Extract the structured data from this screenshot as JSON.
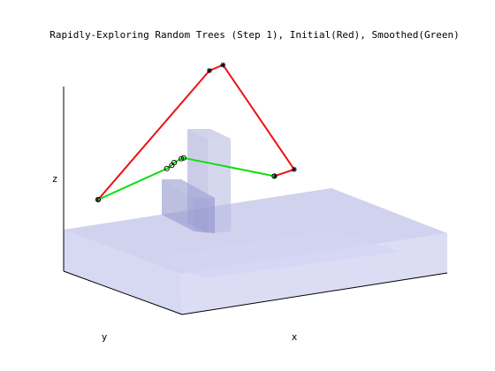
{
  "chart_data": {
    "type": "line3d",
    "title": "Rapidly-Exploring Random Trees (Step 1), Initial(Red), Smoothed(Green)",
    "xlabel": "x",
    "ylabel": "y",
    "zlabel": "z",
    "grid": false,
    "legend": "none",
    "colors": {
      "initial_path": "#ee1111",
      "smoothed_path": "#11dd11",
      "ground": "#bcbfe6",
      "obstacle": "#a9acd8",
      "axes": "#000000"
    },
    "series": [
      {
        "name": "Initial",
        "color": "#ee1111",
        "points": [
          {
            "x": 0.0,
            "y": 0.0,
            "z": 0.5
          },
          {
            "x": 0.46,
            "y": 0.31,
            "z": 1.0
          },
          {
            "x": 0.51,
            "y": 0.3,
            "z": 1.02
          },
          {
            "x": 0.82,
            "y": 0.62,
            "z": 0.37
          },
          {
            "x": 0.74,
            "y": 0.58,
            "z": 0.36
          }
        ]
      },
      {
        "name": "Smoothed",
        "color": "#11dd11",
        "points": [
          {
            "x": 0.0,
            "y": 0.0,
            "z": 0.5
          },
          {
            "x": 0.28,
            "y": 0.16,
            "z": 0.57
          },
          {
            "x": 0.3,
            "y": 0.17,
            "z": 0.58
          },
          {
            "x": 0.31,
            "y": 0.18,
            "z": 0.59
          },
          {
            "x": 0.34,
            "y": 0.2,
            "z": 0.6
          },
          {
            "x": 0.35,
            "y": 0.21,
            "z": 0.6
          },
          {
            "x": 0.74,
            "y": 0.58,
            "z": 0.36
          }
        ]
      }
    ]
  }
}
